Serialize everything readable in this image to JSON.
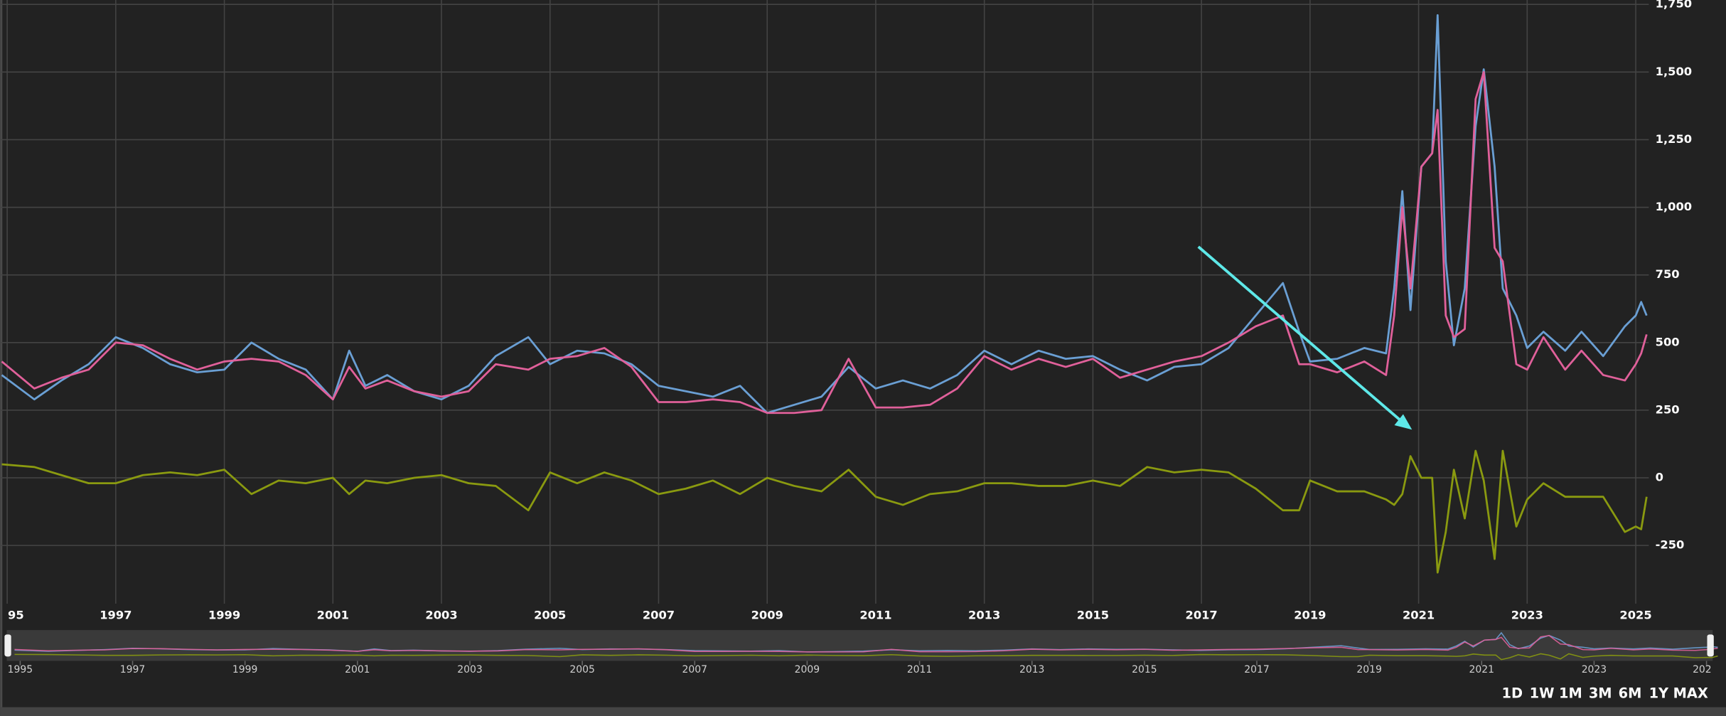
{
  "chart_data": {
    "type": "line",
    "x": [
      1994.9,
      1995.5,
      1996,
      1996.5,
      1997,
      1997.5,
      1998,
      1998.5,
      1999,
      1999.5,
      2000,
      2000.5,
      2001,
      2001.3,
      2001.6,
      2002,
      2002.5,
      2003,
      2003.5,
      2004,
      2004.6,
      2005,
      2005.5,
      2006,
      2006.5,
      2007,
      2007.5,
      2008,
      2008.5,
      2009,
      2009.5,
      2010,
      2010.5,
      2011,
      2011.5,
      2012,
      2012.5,
      2013,
      2013.5,
      2014,
      2014.5,
      2015,
      2015.5,
      2016,
      2016.5,
      2017,
      2017.5,
      2018,
      2018.5,
      2018.8,
      2019,
      2019.5,
      2020,
      2020.4,
      2020.55,
      2020.7,
      2020.85,
      2021.05,
      2021.25,
      2021.35,
      2021.5,
      2021.65,
      2021.85,
      2022.05,
      2022.2,
      2022.4,
      2022.55,
      2022.8,
      2023,
      2023.3,
      2023.7,
      2024,
      2024.4,
      2024.8,
      2025,
      2025.1,
      2025.2
    ],
    "series": [
      {
        "color": "#6a9fd4",
        "values": [
          380,
          290,
          360,
          420,
          520,
          480,
          420,
          390,
          400,
          500,
          440,
          400,
          290,
          470,
          340,
          380,
          320,
          290,
          340,
          450,
          520,
          420,
          470,
          460,
          420,
          340,
          320,
          300,
          340,
          240,
          270,
          300,
          410,
          330,
          360,
          330,
          380,
          470,
          420,
          470,
          440,
          450,
          400,
          360,
          410,
          420,
          480,
          600,
          720,
          540,
          430,
          440,
          480,
          460,
          700,
          1060,
          620,
          1150,
          1200,
          1710,
          800,
          490,
          700,
          1300,
          1510,
          1150,
          700,
          600,
          480,
          540,
          470,
          540,
          450,
          560,
          600,
          650,
          600
        ]
      },
      {
        "color": "#e0609a",
        "values": [
          430,
          330,
          370,
          400,
          500,
          490,
          440,
          400,
          430,
          440,
          430,
          380,
          290,
          410,
          330,
          360,
          320,
          300,
          320,
          420,
          400,
          440,
          450,
          480,
          410,
          280,
          280,
          290,
          280,
          240,
          240,
          250,
          440,
          260,
          260,
          270,
          330,
          450,
          400,
          440,
          410,
          440,
          370,
          400,
          430,
          450,
          500,
          560,
          600,
          420,
          420,
          390,
          430,
          380,
          600,
          1000,
          700,
          1150,
          1200,
          1360,
          600,
          520,
          550,
          1400,
          1500,
          850,
          800,
          420,
          400,
          520,
          400,
          470,
          380,
          360,
          420,
          460,
          530
        ]
      },
      {
        "color": "#8a9a10",
        "values": [
          50,
          40,
          10,
          -20,
          -20,
          10,
          20,
          10,
          30,
          -60,
          -10,
          -20,
          0,
          -60,
          -10,
          -20,
          0,
          10,
          -20,
          -30,
          -120,
          20,
          -20,
          20,
          -10,
          -60,
          -40,
          -10,
          -60,
          0,
          -30,
          -50,
          30,
          -70,
          -100,
          -60,
          -50,
          -20,
          -20,
          -30,
          -30,
          -10,
          -30,
          40,
          20,
          30,
          20,
          -40,
          -120,
          -120,
          -10,
          -50,
          -50,
          -80,
          -100,
          -60,
          80,
          0,
          0,
          -350,
          -200,
          30,
          -150,
          100,
          -10,
          -300,
          100,
          -180,
          -80,
          -20,
          -70,
          -70,
          -70,
          -200,
          -180,
          -190,
          -70
        ]
      }
    ],
    "xlim": [
      1994.87,
      2025.24
    ],
    "xticks": [
      {
        "value": 1995,
        "label": "95"
      },
      1997,
      1999,
      2001,
      2003,
      2005,
      2007,
      2009,
      2011,
      2013,
      2015,
      2017,
      2019,
      2021,
      2023,
      2025
    ],
    "ylim": [
      -450,
      1750
    ],
    "yticks": [
      -250,
      0,
      250,
      500,
      750,
      {
        "value": 1000,
        "label": "1,000"
      },
      {
        "value": 1250,
        "label": "1,250"
      },
      {
        "value": 1500,
        "label": "1,500"
      },
      {
        "value": 1750,
        "label": "1,750"
      }
    ],
    "grid": true,
    "navigator": {
      "xlim": [
        1994.8,
        2025.07
      ],
      "xticks": [
        1995,
        1997,
        1999,
        2001,
        2003,
        2005,
        2007,
        2009,
        2011,
        2013,
        2015,
        2017,
        2019,
        2021,
        2023,
        {
          "value": 2025,
          "label": "202"
        }
      ]
    },
    "range_buttons": [
      "1D",
      "1W",
      "1M",
      "3M",
      "6M",
      "1Y",
      "MAX"
    ]
  }
}
